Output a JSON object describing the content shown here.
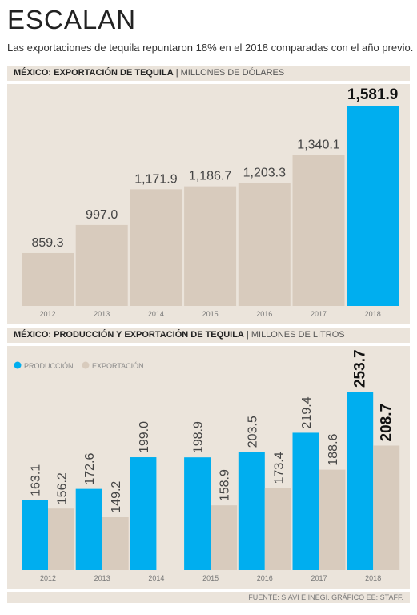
{
  "header": {
    "title": "ESCALAN",
    "subtitle": "Las exportaciones de tequila repuntaron 18% en el 2018 comparadas con el año previo."
  },
  "footer": {
    "source": "FUENTE: SIAVI E INEGI. GRÁFICO EE: STAFF."
  },
  "colors": {
    "produccion": "#00aeef",
    "exportacion": "#d8cbbd",
    "band": "#ebe4db"
  },
  "chart_data": [
    {
      "type": "bar",
      "title": "MÉXICO: EXPORTACIÓN DE TEQUILA",
      "unit": "MILLONES DE DÓLARES",
      "categories": [
        "2012",
        "2013",
        "2014",
        "2015",
        "2016",
        "2017",
        "2018"
      ],
      "values": [
        859.3,
        997.0,
        1171.9,
        1186.7,
        1203.3,
        1340.1,
        1581.9
      ],
      "value_labels": [
        "859.3",
        "997.0",
        "1,171.9",
        "1,186.7",
        "1,203.3",
        "1,340.1",
        "1,581.9"
      ],
      "highlight_index": 6,
      "ylim": [
        600,
        1581.9
      ]
    },
    {
      "type": "bar",
      "title": "MÉXICO: PRODUCCIÓN Y EXPORTACIÓN DE TEQUILA",
      "unit": "MILLONES DE LITROS",
      "categories": [
        "2012",
        "2013",
        "2014",
        "2015",
        "2016",
        "2017",
        "2018"
      ],
      "series": [
        {
          "name": "PRODUCCIÓN",
          "values": [
            163.1,
            172.6,
            199.0,
            198.9,
            203.5,
            219.4,
            253.7
          ],
          "value_labels": [
            "163.1",
            "172.6",
            "199.0",
            "198.9",
            "203.5",
            "219.4",
            "253.7"
          ]
        },
        {
          "name": "EXPORTACIÓN",
          "values": [
            156.2,
            149.2,
            null,
            158.9,
            173.4,
            188.6,
            208.7
          ],
          "value_labels": [
            "156.2",
            "149.2",
            "",
            "158.9",
            "173.4",
            "188.6",
            "208.7"
          ]
        }
      ],
      "highlight_index": 6,
      "legend": "top-left",
      "ylim": [
        105,
        253.7
      ]
    }
  ]
}
